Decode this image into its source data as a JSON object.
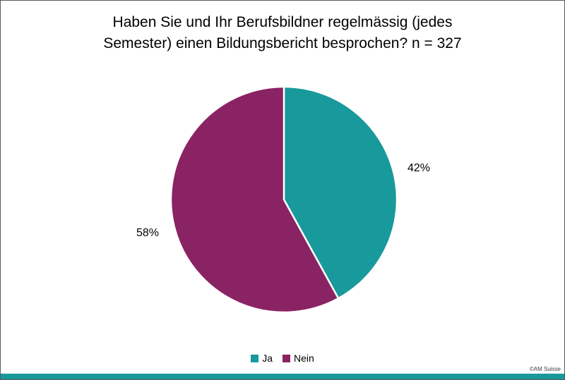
{
  "chart_data": {
    "type": "pie",
    "title": "Haben Sie und Ihr Berufsbildner regelmässig (jedes Semester) einen Bildungsbericht besprochen? n = 327",
    "n": 327,
    "start_angle_deg": 0,
    "direction": "clockwise",
    "legend_position": "bottom",
    "slices": [
      {
        "label": "Ja",
        "value": 42,
        "percent_text": "42%",
        "color": "#18999B"
      },
      {
        "label": "Nein",
        "value": 58,
        "percent_text": "58%",
        "color": "#8A2363"
      }
    ]
  },
  "footer": {
    "credit": "©AM Suisse",
    "accent_bar_color": "#18999B"
  }
}
